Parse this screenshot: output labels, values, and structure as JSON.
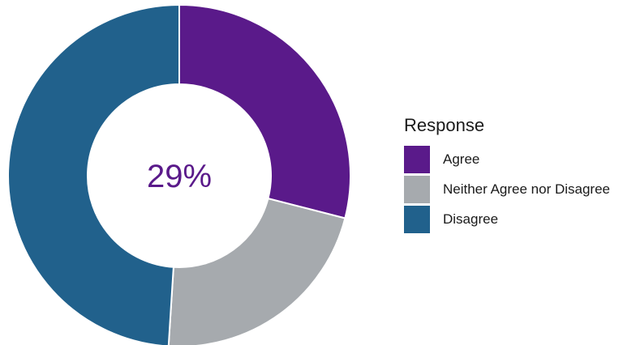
{
  "chart_data": {
    "type": "pie",
    "variant": "donut",
    "center_label": "29%",
    "center_label_color": "#5a1a8a",
    "legend": {
      "title": "Response",
      "placement": "right"
    },
    "categories": [
      "Agree",
      "Neither Agree nor Disagree",
      "Disagree"
    ],
    "values": [
      29,
      22,
      49
    ],
    "colors": [
      "#5a1a8a",
      "#a6aaae",
      "#21618c"
    ]
  }
}
